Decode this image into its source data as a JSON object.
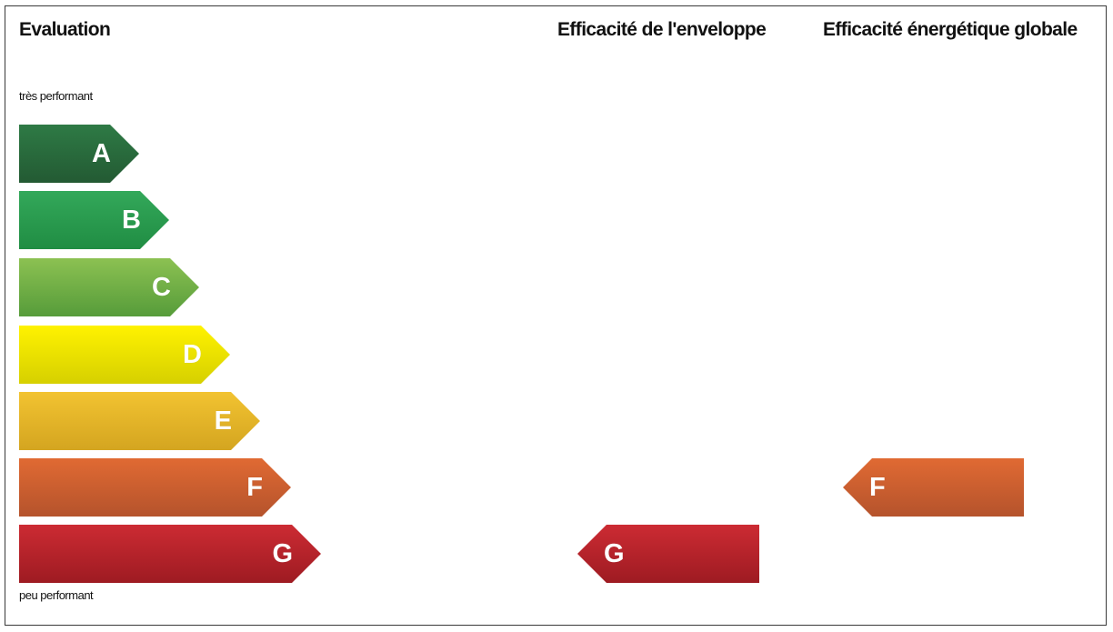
{
  "headings": {
    "evaluation": "Evaluation",
    "envelope": "Efficacité de l'enveloppe",
    "global": "Efficacité énergétique globale"
  },
  "labels": {
    "top": "très performant",
    "bottom": "peu performant"
  },
  "scale": [
    {
      "letter": "A",
      "color_top": "#2e7a45",
      "color_bottom": "#235a33"
    },
    {
      "letter": "B",
      "color_top": "#33a85a",
      "color_bottom": "#208d43"
    },
    {
      "letter": "C",
      "color_top": "#8cc152",
      "color_bottom": "#569c3a"
    },
    {
      "letter": "D",
      "color_top": "#fff200",
      "color_bottom": "#d6d000"
    },
    {
      "letter": "E",
      "color_top": "#f2c331",
      "color_bottom": "#d4a520"
    },
    {
      "letter": "F",
      "color_top": "#e06a33",
      "color_bottom": "#b5532c"
    },
    {
      "letter": "G",
      "color_top": "#cc2b33",
      "color_bottom": "#9e1b22"
    }
  ],
  "ratings": {
    "envelope": {
      "letter": "G",
      "color_top": "#cc2b33",
      "color_bottom": "#9e1b22"
    },
    "global": {
      "letter": "F",
      "color_top": "#e06a33",
      "color_bottom": "#b5532c"
    }
  }
}
